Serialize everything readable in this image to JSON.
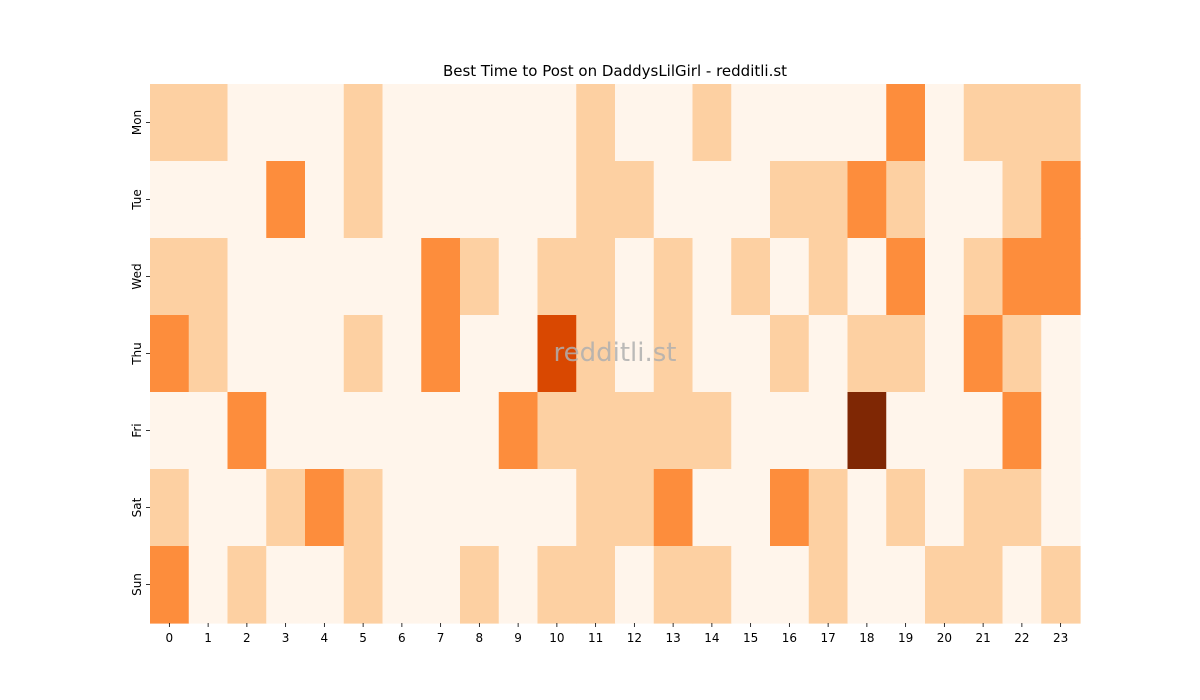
{
  "chart_data": {
    "type": "heatmap",
    "title": "Best Time to Post on DaddysLilGirl - redditli.st",
    "xlabel": "",
    "ylabel": "",
    "x_categories": [
      "0",
      "1",
      "2",
      "3",
      "4",
      "5",
      "6",
      "7",
      "8",
      "9",
      "10",
      "11",
      "12",
      "13",
      "14",
      "15",
      "16",
      "17",
      "18",
      "19",
      "20",
      "21",
      "22",
      "23"
    ],
    "y_categories": [
      "Mon",
      "Tue",
      "Wed",
      "Thu",
      "Fri",
      "Sat",
      "Sun"
    ],
    "values": [
      [
        1,
        1,
        0,
        0,
        0,
        1,
        0,
        0,
        0,
        0,
        0,
        1,
        0,
        0,
        1,
        0,
        0,
        0,
        0,
        2,
        0,
        1,
        1,
        1
      ],
      [
        0,
        0,
        0,
        2,
        0,
        1,
        0,
        0,
        0,
        0,
        0,
        1,
        1,
        0,
        0,
        0,
        1,
        1,
        2,
        1,
        0,
        0,
        1,
        2
      ],
      [
        1,
        1,
        0,
        0,
        0,
        0,
        0,
        2,
        1,
        0,
        1,
        1,
        0,
        1,
        0,
        1,
        0,
        1,
        0,
        2,
        0,
        1,
        2,
        2
      ],
      [
        2,
        1,
        0,
        0,
        0,
        1,
        0,
        2,
        0,
        0,
        3,
        1,
        0,
        1,
        0,
        0,
        1,
        0,
        1,
        1,
        0,
        2,
        1,
        0
      ],
      [
        0,
        0,
        2,
        0,
        0,
        0,
        0,
        0,
        0,
        2,
        1,
        1,
        1,
        1,
        1,
        0,
        0,
        0,
        4,
        0,
        0,
        0,
        2,
        0
      ],
      [
        1,
        0,
        0,
        1,
        2,
        1,
        0,
        0,
        0,
        0,
        0,
        1,
        1,
        2,
        0,
        0,
        2,
        1,
        0,
        1,
        0,
        1,
        1,
        0
      ],
      [
        2,
        0,
        1,
        0,
        0,
        1,
        0,
        0,
        1,
        0,
        1,
        1,
        0,
        1,
        1,
        0,
        0,
        1,
        0,
        0,
        1,
        1,
        0,
        1
      ]
    ],
    "colorscale": [
      "#fff5eb",
      "#fdd0a2",
      "#fd8d3c",
      "#d94801",
      "#7f2704"
    ],
    "grid": false,
    "legend": "none",
    "watermark": "redditli.st"
  }
}
